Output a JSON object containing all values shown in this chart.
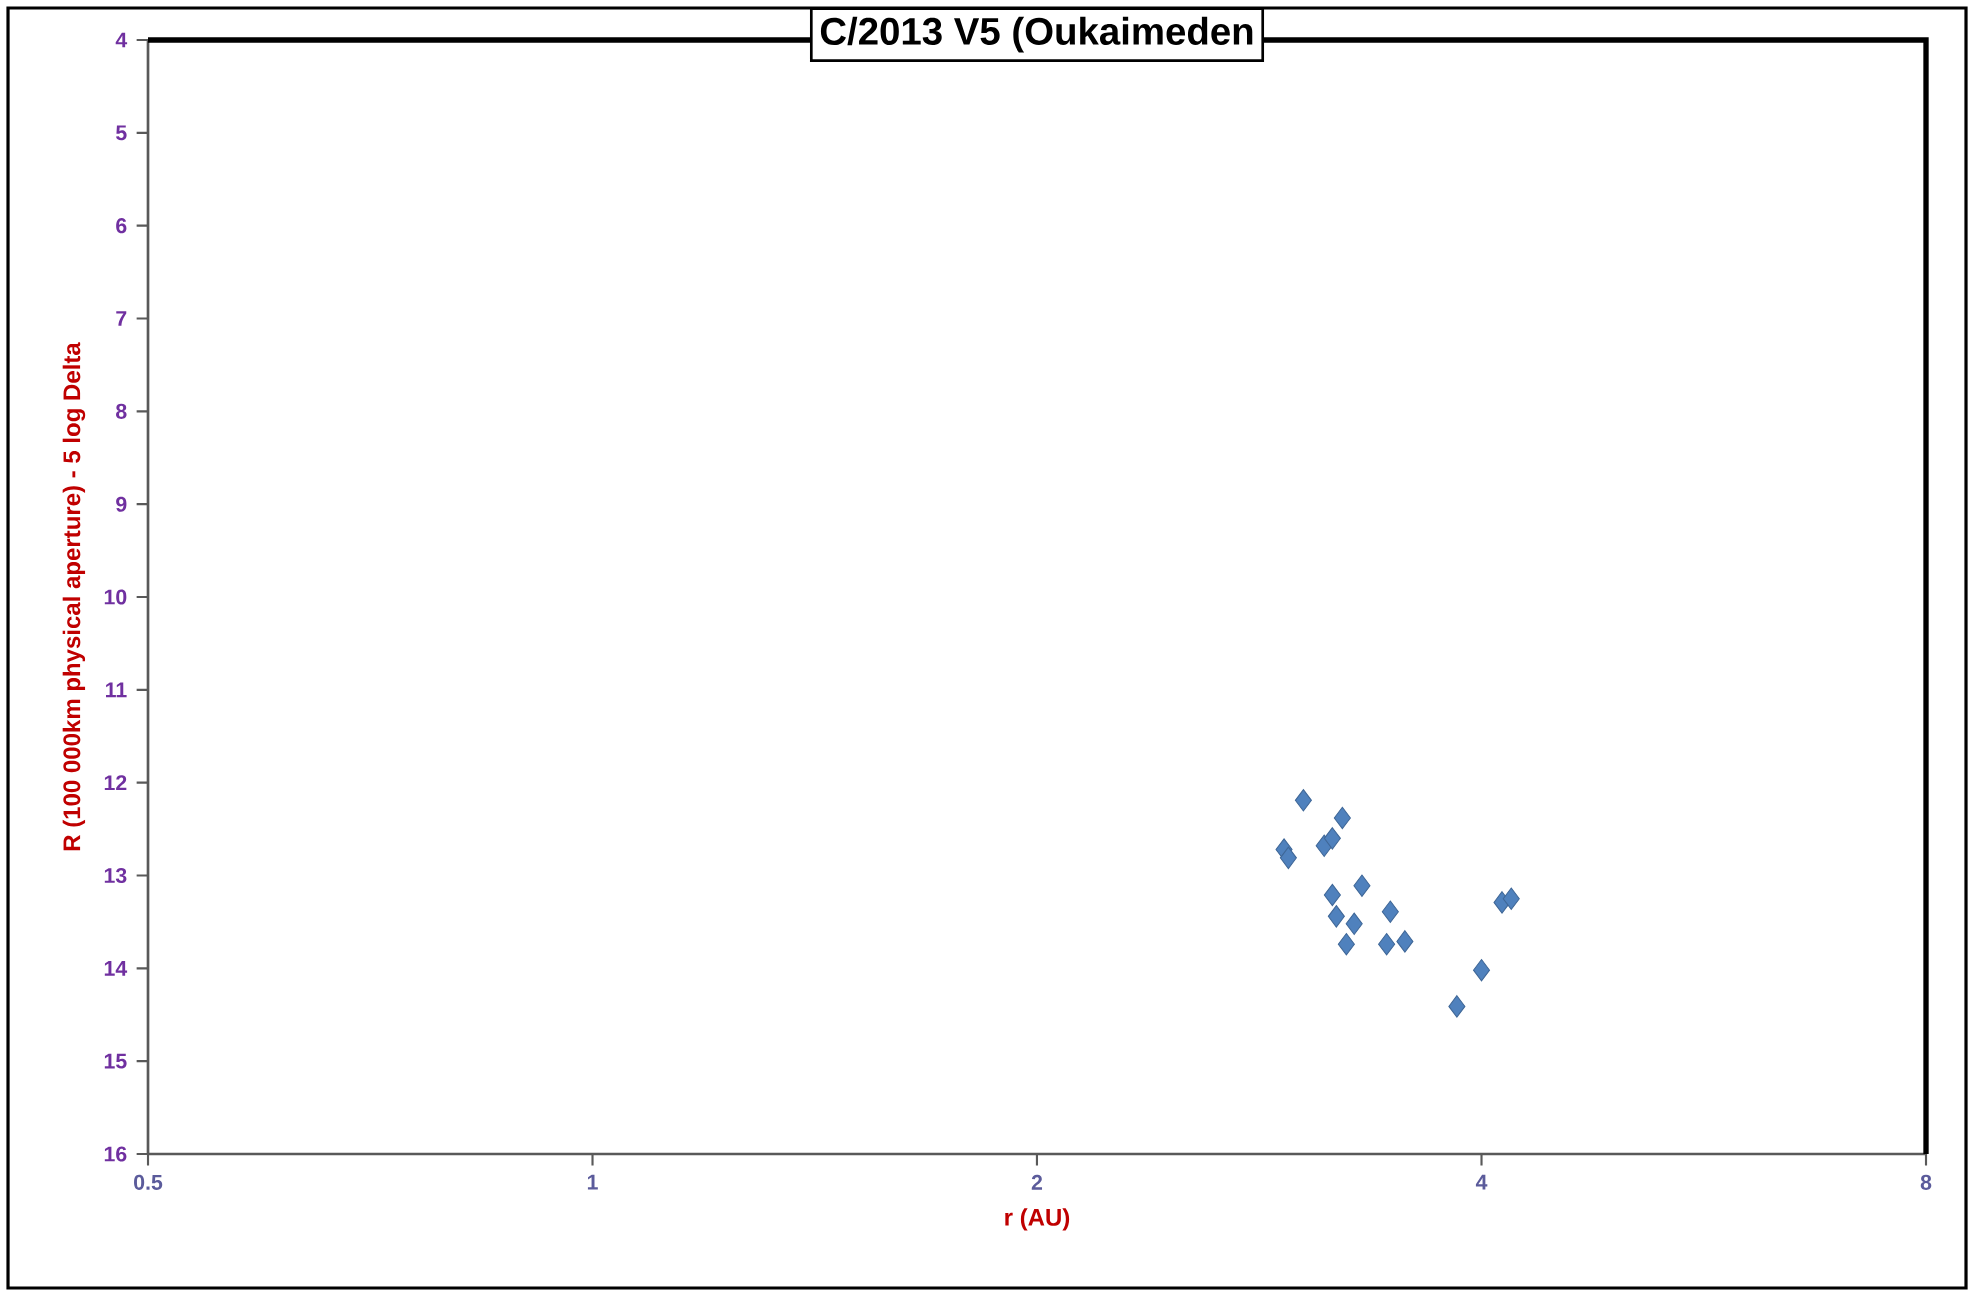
{
  "chart_data": {
    "type": "scatter",
    "title": "C/2013 V5 (Oukaimeden",
    "xlabel": "r (AU)",
    "ylabel": "R (100 000km physical aperture) - 5 log Delta",
    "x": [
      3.03,
      3.22,
      2.94,
      2.96,
      3.13,
      3.17,
      3.32,
      3.17,
      3.19,
      3.28,
      3.47,
      3.24,
      3.45,
      3.55,
      4.13,
      4.19,
      4.0,
      3.85
    ],
    "values": [
      12.19,
      12.38,
      12.72,
      12.81,
      12.68,
      12.6,
      13.11,
      13.21,
      13.44,
      13.52,
      13.39,
      13.74,
      13.74,
      13.71,
      13.29,
      13.25,
      14.02,
      14.41
    ],
    "color": "#4f81bd",
    "marker": "diamond",
    "log": "x",
    "xlim": [
      0.5,
      8
    ],
    "ylim": [
      16,
      4
    ],
    "xticks": [
      0.5,
      1,
      2,
      4,
      8
    ],
    "yticks": [
      4,
      5,
      6,
      7,
      8,
      9,
      10,
      11,
      12,
      13,
      14,
      15,
      16
    ]
  }
}
